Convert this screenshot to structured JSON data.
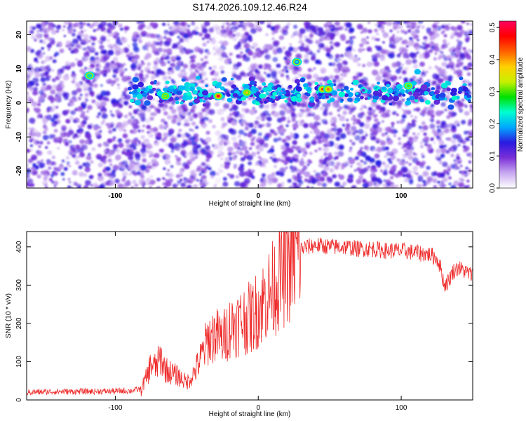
{
  "title": "S174.2026.109.12.46.R24",
  "chart_data": [
    {
      "type": "heatmap",
      "xlabel": "Height of straight line (km)",
      "ylabel": "Frequency (Hz)",
      "colorbar_label": "Normalized spectral amplitude",
      "xlim": [
        -162,
        150
      ],
      "ylim": [
        -25,
        24
      ],
      "xticks": [
        -100,
        0,
        100
      ],
      "yticks": [
        -20,
        -10,
        0,
        10,
        20
      ],
      "cbar_ticks": [
        0.0,
        0.1,
        0.2,
        0.3,
        0.4,
        0.5
      ],
      "cbar_range": [
        0,
        0.52
      ],
      "colorscale": [
        "#ffffff",
        "#c8a8f0",
        "#7a2fd8",
        "#2a1ae0",
        "#00a8ff",
        "#00ffd0",
        "#00e000",
        "#c8f000",
        "#ffd000",
        "#ff6000",
        "#ff0000",
        "#ff0060"
      ],
      "ridge_frequency_hz": 3,
      "peaks": [
        {
          "x": -28,
          "y": 2,
          "value": 0.5
        },
        {
          "x": 45,
          "y": 4,
          "value": 0.45
        },
        {
          "x": 49,
          "y": 4,
          "value": 0.42
        },
        {
          "x": -8,
          "y": 3,
          "value": 0.38
        },
        {
          "x": 105,
          "y": 5,
          "value": 0.3
        },
        {
          "x": -65,
          "y": 2,
          "value": 0.32
        },
        {
          "x": -118,
          "y": 8,
          "value": 0.25
        },
        {
          "x": 27,
          "y": 12,
          "value": 0.22
        }
      ]
    },
    {
      "type": "line",
      "xlabel": "Height of straight line (km)",
      "ylabel": "SNR (10 * v/v)",
      "xlim": [
        -162,
        150
      ],
      "ylim": [
        0,
        440
      ],
      "xticks": [
        -100,
        0,
        100
      ],
      "yticks": [
        0,
        100,
        200,
        300,
        400
      ],
      "color": "#ee2a2a",
      "series": [
        {
          "x": [
            -162,
            -140,
            -120,
            -100,
            -90,
            -82,
            -78,
            -75,
            -72,
            -68,
            -65,
            -60,
            -55,
            -50,
            -45,
            -40,
            -35,
            -30,
            -25,
            -20,
            -15,
            -10,
            -5,
            0,
            5,
            10,
            15,
            20,
            25,
            30,
            35,
            40,
            50,
            60,
            70,
            80,
            90,
            100,
            110,
            120,
            125,
            128,
            130,
            133,
            136,
            140,
            145,
            150
          ],
          "y": [
            20,
            22,
            22,
            23,
            24,
            28,
            60,
            95,
            85,
            110,
            80,
            70,
            60,
            45,
            70,
            110,
            160,
            170,
            160,
            190,
            200,
            210,
            215,
            240,
            265,
            290,
            320,
            345,
            370,
            395,
            400,
            405,
            400,
            400,
            395,
            395,
            390,
            390,
            385,
            380,
            370,
            340,
            300,
            310,
            335,
            345,
            335,
            325
          ]
        }
      ]
    }
  ]
}
